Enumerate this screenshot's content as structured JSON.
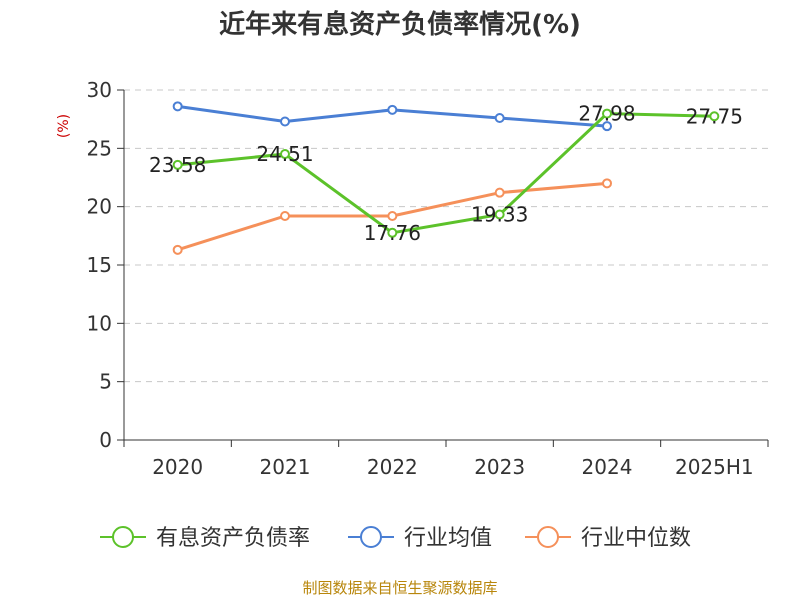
{
  "chart_data": {
    "type": "line",
    "title": "近年来有息资产负债率情况(%)",
    "ylabel": "(%)",
    "xlabel": "",
    "categories": [
      "2020",
      "2021",
      "2022",
      "2023",
      "2024",
      "2025H1"
    ],
    "ylim": [
      0,
      30
    ],
    "yticks": [
      0,
      5,
      10,
      15,
      20,
      25,
      30
    ],
    "grid": true,
    "legend_position": "bottom",
    "series": [
      {
        "name": "有息资产负债率",
        "color": "#5cc22a",
        "values": [
          23.58,
          24.51,
          17.76,
          19.33,
          27.98,
          27.75
        ],
        "labels": [
          "23.58",
          "24.51",
          "17.76",
          "19.33",
          "27.98",
          "27.75"
        ]
      },
      {
        "name": "行业均值",
        "color": "#4a7fd4",
        "values": [
          28.6,
          27.3,
          28.3,
          27.6,
          26.9,
          null
        ]
      },
      {
        "name": "行业中位数",
        "color": "#f5905a",
        "values": [
          16.3,
          19.2,
          19.2,
          21.2,
          22.0,
          null
        ]
      }
    ]
  },
  "source_note": "制图数据来自恒生聚源数据库"
}
